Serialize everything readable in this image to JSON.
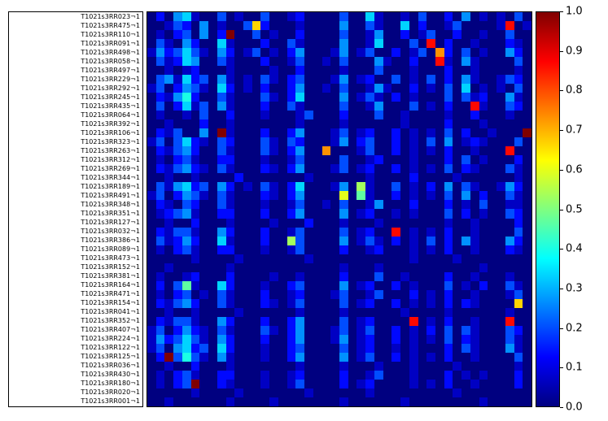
{
  "chart_data": {
    "type": "heatmap",
    "title": "",
    "colormap": "jet",
    "vmin": 0.0,
    "vmax": 1.0,
    "n_rows": 44,
    "n_cols": 44,
    "value_encoding": "each hex digit divided by 15 gives cell value in [0,1]",
    "row_labels": [
      "T1021s3RR023¬1",
      "T1021s3RR475¬1",
      "T1021s3RR110¬1",
      "T1021s3RR091¬1",
      "T1021s3RR498¬1",
      "T1021s3RR058¬1",
      "T1021s3RR497¬1",
      "T1021s3RR229¬1",
      "T1021s3RR292¬1",
      "T1021s3RR245¬1",
      "T1021s3RR435¬1",
      "T1021s3RR064¬1",
      "T1021s3RR392¬1",
      "T1021s3RR106¬1",
      "T1021s3RR323¬1",
      "T1021s3RR263¬1",
      "T1021s3RR312¬1",
      "T1021s3RR269¬1",
      "T1021s3RR344¬1",
      "T1021s3RR189¬1",
      "T1021s3RR491¬1",
      "T1021s3RR348¬1",
      "T1021s3RR351¬1",
      "T1021s3RR127¬1",
      "T1021s3RR032¬1",
      "T1021s3RR386¬1",
      "T1021s3RR089¬1",
      "T1021s3RR473¬1",
      "T1021s3RR152¬1",
      "T1021s3RR381¬1",
      "T1021s3RR164¬1",
      "T1021s3RR471¬1",
      "T1021s3RR154¬1",
      "T1021s3RR041¬1",
      "T1021s3RR352¬1",
      "T1021s3RR407¬1",
      "T1021s3RR224¬1",
      "T1021s3RR122¬1",
      "T1021s3RR125¬1",
      "T1021s3RR036¬1",
      "T1021s3RR430¬1",
      "T1021s3RR180¬1",
      "T1021s3RR020¬1",
      "T1021s3RR001¬1"
    ],
    "values_hex_rows": [
      "02045100301003001200003005100103002040101030",
      "001320401003a2000100004003100502001300001d01",
      "010230402f0030100200003001400201300200100300",
      "03104200510002003100004001500030d02001000210",
      "142353104201301024000140130020130b2030100420",
      "031254003100020013001030004100200d1041000030",
      "00101200010000100200001000300010002001000010",
      "03415230410103102300014012003010302041001320",
      "13024310520102002400103001410020103050101030",
      "02146200310003102500004013102010003031200410",
      "0302513041000200310000300140003010200d100320",
      "01001030020001000130002000300100001002000100",
      "00100020010000000100001000000100002000100000",
      "02130040f1000200240001301200201010302001000f",
      "13035210320003103200014023002010304012100030",
      "02134200310003102400b00013002010102001000d00",
      "01023100220001001300003001200010002030100020",
      "02134210310002102400013012002010103021000310",
      "00100100002000000010000001000020000100000010",
      "03145230420103102500014081003010204031001420",
      "13024310310002102400009071002010103040200310",
      "02103200310001001300103001400020002010300110",
      "01234100220002002400004012001010003020100320",
      "00100200010000100020001000100000001001000020",
      "0213310042000200130000301200d010102001000030",
      "03124200510002008300004013102010302041000420",
      "01023100220001001300002001200010102001000210",
      "00000100001000000010000000000010000100000000",
      "00100000010000000000001000100000000000100000",
      "01001200020000100100002000300100002001000100",
      "02037100520001002300004012002010003010200310",
      "01023010310002001200013001300020102001000130",
      "021342003100021013000030120020101020210000a0",
      "00100100001000000100001000000100001000000100",
      "021331004200020024000030120000d0102001000d00",
      "13024210310003102400013013002010203031000320",
      "14235310420002002400014012002010103021000310",
      "13045230520001002300003012001010002031000410",
      "02f36310410001002400004013002010102001000030",
      "00100200010000000100001000100010000100000010",
      "01023100220001001200002001300010002010100020",
      "01023f00210001001300002012000010102001000020",
      "00000100001000000010000001000000000100000000",
      "00100000010000100000001000000100000000100000"
    ]
  },
  "colorbar": {
    "orientation": "vertical",
    "tick_labels": [
      "1.0",
      "0.9",
      "0.8",
      "0.7",
      "0.6",
      "0.5",
      "0.4",
      "0.3",
      "0.2",
      "0.1",
      "0.0"
    ]
  }
}
